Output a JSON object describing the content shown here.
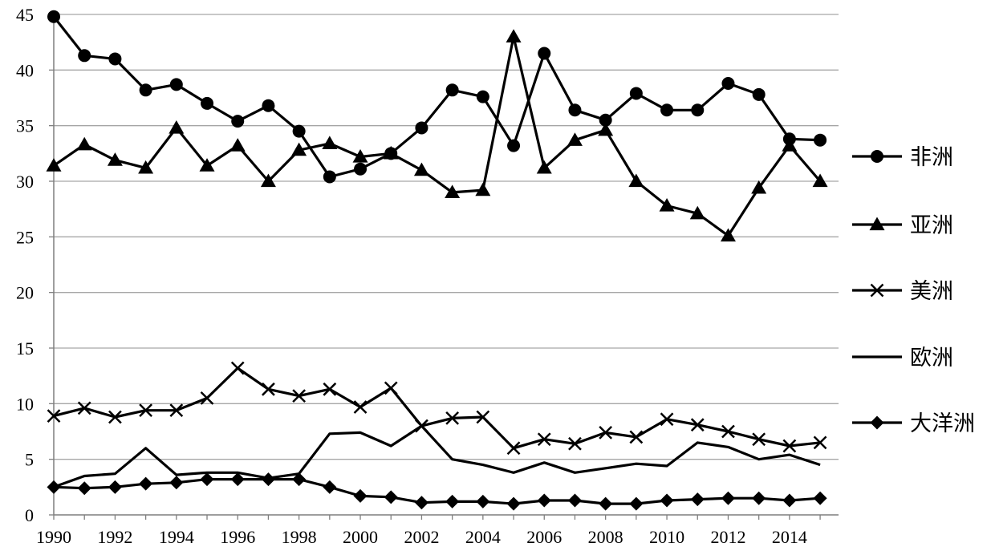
{
  "chart_data": {
    "type": "line",
    "title": "",
    "xlabel": "",
    "ylabel": "",
    "x": [
      1990,
      1991,
      1992,
      1993,
      1994,
      1995,
      1996,
      1997,
      1998,
      1999,
      2000,
      2001,
      2002,
      2003,
      2004,
      2005,
      2006,
      2007,
      2008,
      2009,
      2010,
      2011,
      2012,
      2013,
      2014,
      2015
    ],
    "xlim": [
      1990,
      2015.6
    ],
    "ylim": [
      0,
      45
    ],
    "yticks": [
      0,
      5,
      10,
      15,
      20,
      25,
      30,
      35,
      40,
      45
    ],
    "xticks": [
      1990,
      1992,
      1994,
      1996,
      1998,
      2000,
      2002,
      2004,
      2006,
      2008,
      2010,
      2012,
      2014
    ],
    "grid": "horizontal",
    "legend": "right",
    "series": [
      {
        "name": "非洲",
        "marker": "circle",
        "values": [
          44.8,
          41.3,
          41.0,
          38.2,
          38.7,
          37.0,
          35.4,
          36.8,
          34.5,
          30.4,
          31.1,
          32.5,
          34.8,
          38.2,
          37.6,
          33.2,
          41.5,
          36.4,
          35.5,
          37.9,
          36.4,
          36.4,
          38.8,
          37.8,
          33.8,
          33.7
        ]
      },
      {
        "name": "亚洲",
        "marker": "triangle",
        "values": [
          31.4,
          33.3,
          31.9,
          31.2,
          34.8,
          31.4,
          33.2,
          30.0,
          32.8,
          33.4,
          32.2,
          32.5,
          31.0,
          29.0,
          29.2,
          43.0,
          31.2,
          33.7,
          34.6,
          30.0,
          27.8,
          27.1,
          25.1,
          29.4,
          33.2,
          30.0
        ]
      },
      {
        "name": "美洲",
        "marker": "x",
        "values": [
          8.9,
          9.6,
          8.8,
          9.4,
          9.4,
          10.5,
          13.2,
          11.3,
          10.7,
          11.3,
          9.7,
          11.4,
          8.0,
          8.7,
          8.8,
          6.0,
          6.8,
          6.4,
          7.4,
          7.0,
          8.6,
          8.1,
          7.5,
          6.8,
          6.2,
          6.5
        ]
      },
      {
        "name": "欧洲",
        "marker": "none",
        "values": [
          2.5,
          3.5,
          3.7,
          6.0,
          3.6,
          3.8,
          3.8,
          3.3,
          3.7,
          7.3,
          7.4,
          6.2,
          8.0,
          5.0,
          4.5,
          3.8,
          4.7,
          3.8,
          4.2,
          4.6,
          4.4,
          6.5,
          6.1,
          5.0,
          5.4,
          4.5
        ]
      },
      {
        "name": "大洋洲",
        "marker": "diamond",
        "values": [
          2.5,
          2.4,
          2.5,
          2.8,
          2.9,
          3.2,
          3.2,
          3.2,
          3.2,
          2.5,
          1.7,
          1.6,
          1.1,
          1.2,
          1.2,
          1.0,
          1.3,
          1.3,
          1.0,
          1.0,
          1.3,
          1.4,
          1.5,
          1.5,
          1.3,
          1.5
        ]
      }
    ]
  }
}
